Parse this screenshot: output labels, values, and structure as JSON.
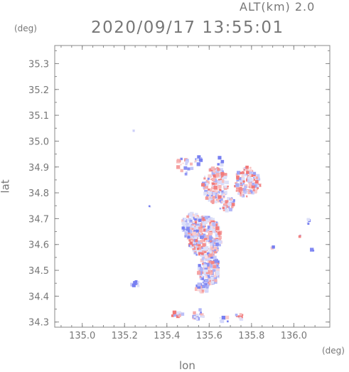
{
  "header": {
    "altitude": "ALT(km)  2.0",
    "datetime": "2020/09/17 13:55:01"
  },
  "chart_data": {
    "type": "heatmap",
    "title": "2020/09/17 13:55:01",
    "subtitle": "ALT(km)  2.0",
    "xlabel": "lon",
    "ylabel": "lat",
    "x_unit": "(deg)",
    "y_unit": "(deg)",
    "xlim": [
      134.87,
      136.17
    ],
    "ylim": [
      34.28,
      35.37
    ],
    "x_ticks": [
      "135.0",
      "135.2",
      "135.4",
      "135.6",
      "135.8",
      "136.0"
    ],
    "x_tick_values": [
      135.0,
      135.2,
      135.4,
      135.6,
      135.8,
      136.0
    ],
    "y_ticks": [
      "34.3",
      "34.4",
      "34.5",
      "34.6",
      "34.7",
      "34.8",
      "34.9",
      "35.0",
      "35.1",
      "35.2",
      "35.3"
    ],
    "y_tick_values": [
      34.3,
      34.4,
      34.5,
      34.6,
      34.7,
      34.8,
      34.9,
      35.0,
      35.1,
      35.2,
      35.3
    ],
    "grid": false,
    "colors": {
      "positive": "#f07070",
      "negative": "#7078f0",
      "neutral": "#dde0f8"
    },
    "clusters": [
      {
        "lon": 135.63,
        "lat": 34.83,
        "rlon": 0.06,
        "rlat": 0.07,
        "n": 160,
        "bias": 0.15
      },
      {
        "lon": 135.78,
        "lat": 34.84,
        "rlon": 0.06,
        "rlat": 0.06,
        "n": 140,
        "bias": 0.25
      },
      {
        "lon": 135.68,
        "lat": 34.76,
        "rlon": 0.04,
        "rlat": 0.03,
        "n": 40,
        "bias": 0.0
      },
      {
        "lon": 135.58,
        "lat": 34.63,
        "rlon": 0.08,
        "rlat": 0.08,
        "n": 320,
        "bias": 0.05
      },
      {
        "lon": 135.52,
        "lat": 34.67,
        "rlon": 0.05,
        "rlat": 0.05,
        "n": 90,
        "bias": -0.2
      },
      {
        "lon": 135.6,
        "lat": 34.5,
        "rlon": 0.05,
        "rlat": 0.06,
        "n": 150,
        "bias": -0.1
      },
      {
        "lon": 135.57,
        "lat": 34.43,
        "rlon": 0.03,
        "rlat": 0.02,
        "n": 30,
        "bias": -0.2
      },
      {
        "lon": 135.48,
        "lat": 34.9,
        "rlon": 0.04,
        "rlat": 0.04,
        "n": 20,
        "bias": 0.0
      },
      {
        "lon": 135.55,
        "lat": 34.92,
        "rlon": 0.02,
        "rlat": 0.02,
        "n": 10,
        "bias": -0.3
      },
      {
        "lon": 135.25,
        "lat": 34.45,
        "rlon": 0.02,
        "rlat": 0.015,
        "n": 12,
        "bias": -0.5
      },
      {
        "lon": 135.55,
        "lat": 34.33,
        "rlon": 0.03,
        "rlat": 0.02,
        "n": 22,
        "bias": -0.4
      },
      {
        "lon": 135.45,
        "lat": 34.33,
        "rlon": 0.03,
        "rlat": 0.01,
        "n": 12,
        "bias": 0.4
      },
      {
        "lon": 135.67,
        "lat": 34.31,
        "rlon": 0.03,
        "rlat": 0.01,
        "n": 10,
        "bias": -0.4
      },
      {
        "lon": 135.74,
        "lat": 34.32,
        "rlon": 0.03,
        "rlat": 0.01,
        "n": 10,
        "bias": 0.4
      },
      {
        "lon": 136.07,
        "lat": 34.69,
        "rlon": 0.01,
        "rlat": 0.01,
        "n": 5,
        "bias": -0.8
      },
      {
        "lon": 136.03,
        "lat": 34.63,
        "rlon": 0.005,
        "rlat": 0.007,
        "n": 3,
        "bias": 0.3
      },
      {
        "lon": 136.09,
        "lat": 34.58,
        "rlon": 0.005,
        "rlat": 0.005,
        "n": 2,
        "bias": -0.6
      },
      {
        "lon": 135.9,
        "lat": 34.59,
        "rlon": 0.007,
        "rlat": 0.007,
        "n": 3,
        "bias": -0.5
      },
      {
        "lon": 135.24,
        "lat": 35.04,
        "rlon": 0.005,
        "rlat": 0.003,
        "n": 2,
        "bias": -0.8
      },
      {
        "lon": 135.32,
        "lat": 34.75,
        "rlon": 0.005,
        "rlat": 0.005,
        "n": 2,
        "bias": -0.5
      },
      {
        "lon": 135.65,
        "lat": 34.92,
        "rlon": 0.015,
        "rlat": 0.02,
        "n": 6,
        "bias": -0.7
      }
    ]
  }
}
